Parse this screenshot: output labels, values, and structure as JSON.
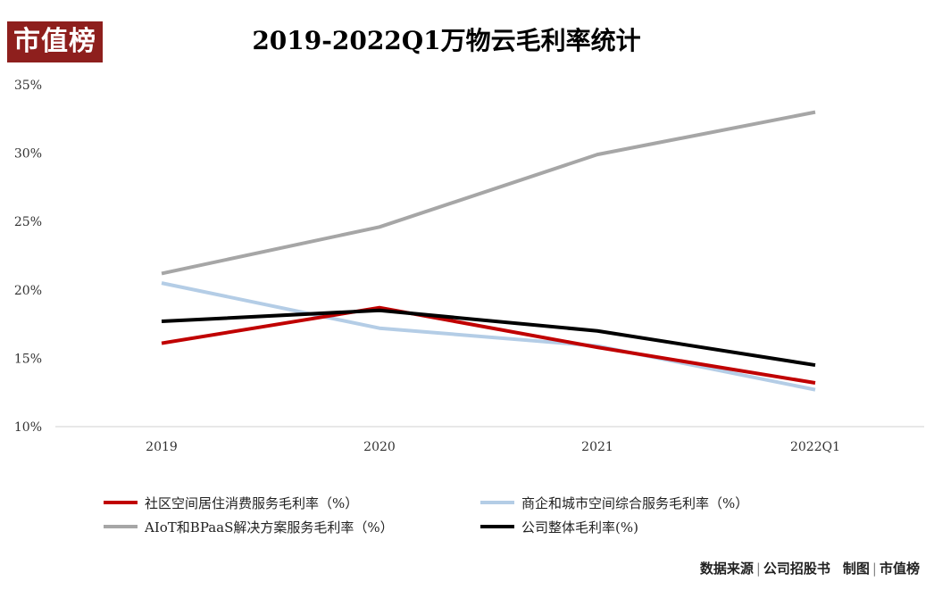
{
  "logo_text": "市值榜",
  "footer": {
    "source_label": "数据来源",
    "source": "公司招股书",
    "made_by_label": "制图",
    "made_by": "市值榜"
  },
  "chart_data": {
    "type": "line",
    "title": "2019-2022Q1万物云毛利率统计",
    "categories": [
      "2019",
      "2020",
      "2021",
      "2022Q1"
    ],
    "y_ticks": [
      "10%",
      "15%",
      "20%",
      "25%",
      "30%",
      "35%"
    ],
    "ylim": [
      10,
      35
    ],
    "grid": false,
    "legend_position": "bottom",
    "series": [
      {
        "name": "社区空间居住消费服务毛利率（%）",
        "color": "#c00000",
        "values": [
          16.1,
          18.7,
          15.8,
          13.2
        ]
      },
      {
        "name": "商企和城市空间综合服务毛利率（%）",
        "color": "#b4cde6",
        "values": [
          20.5,
          17.2,
          15.9,
          12.7
        ]
      },
      {
        "name": "AIoT和BPaaS解决方案服务毛利率（%）",
        "color": "#a6a6a6",
        "values": [
          21.2,
          24.6,
          29.9,
          33.0
        ]
      },
      {
        "name": "公司整体毛利率(%)",
        "color": "#000000",
        "values": [
          17.7,
          18.5,
          17.0,
          14.5
        ]
      }
    ]
  }
}
